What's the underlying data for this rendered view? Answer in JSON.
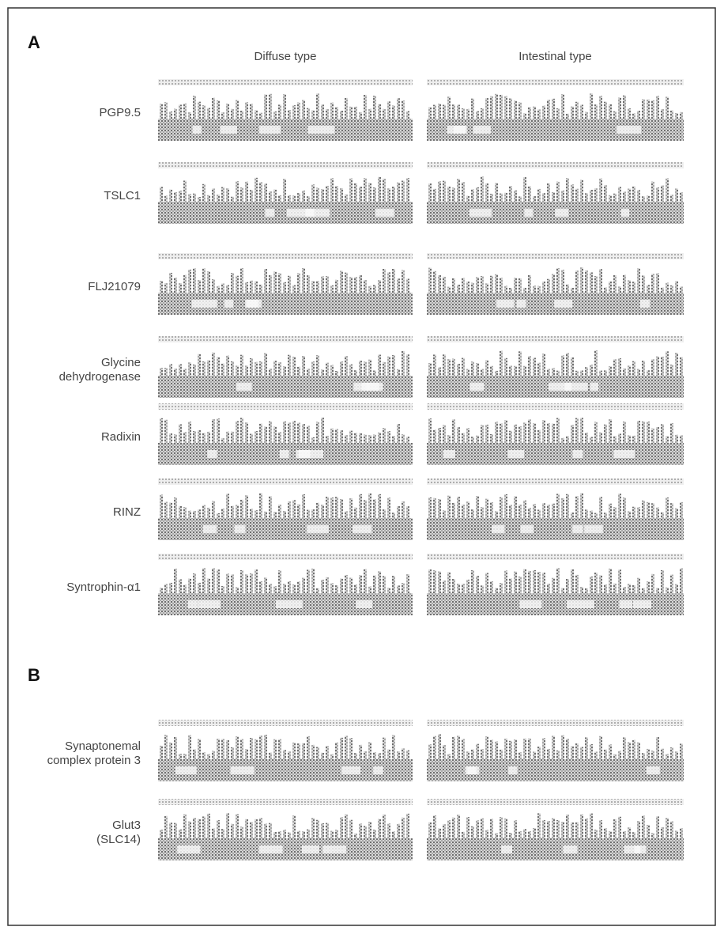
{
  "panels": [
    {
      "label": "A",
      "columns": [
        "Diffuse type",
        "Intestinal type"
      ],
      "rows": [
        {
          "label": [
            "PGP9.5"
          ]
        },
        {
          "label": [
            "TSLC1"
          ]
        },
        {
          "label": [
            "FLJ21079"
          ]
        },
        {
          "label": [
            "Glycine",
            "dehydrogenase"
          ]
        },
        {
          "label": [
            "Radixin"
          ]
        },
        {
          "label": [
            "RINZ"
          ]
        },
        {
          "label": [
            "Syntrophin-α1"
          ]
        }
      ]
    },
    {
      "label": "B",
      "rows": [
        {
          "label": [
            "Synaptonemal",
            "complex protein 3"
          ]
        },
        {
          "label": [
            "Glut3",
            "(SLC14)"
          ]
        }
      ]
    }
  ]
}
